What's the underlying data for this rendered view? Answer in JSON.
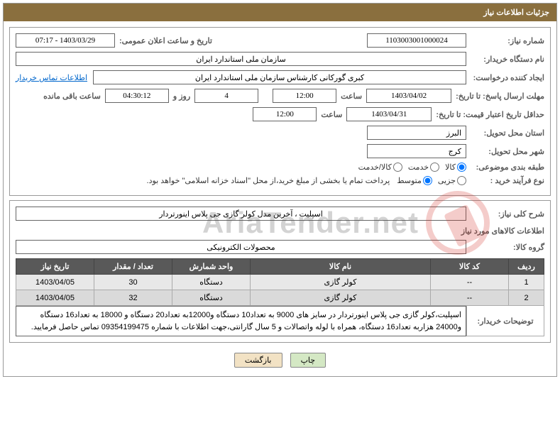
{
  "header_title": "جزئیات اطلاعات نیاز",
  "labels": {
    "need_no": "شماره نیاز:",
    "announce_dt": "تاریخ و ساعت اعلان عمومی:",
    "buyer_org": "نام دستگاه خریدار:",
    "requester": "ایجاد کننده درخواست:",
    "contact_link": "اطلاعات تماس خریدار",
    "reply_deadline": "مهلت ارسال پاسخ: تا تاریخ:",
    "hour": "ساعت",
    "days_and": "روز و",
    "remaining": "ساعت باقی مانده",
    "price_validity": "حداقل تاریخ اعتبار قیمت: تا تاریخ:",
    "delivery_province": "استان محل تحویل:",
    "delivery_city": "شهر محل تحویل:",
    "category": "طبقه بندی موضوعی:",
    "purchase_type": "نوع فرآیند خرید :",
    "purchase_note": "پرداخت تمام یا بخشی از مبلغ خرید،از محل \"اسناد خزانه اسلامی\" خواهد بود.",
    "need_summary": "شرح کلی نیاز:",
    "goods_info": "اطلاعات کالاهای مورد نیاز",
    "goods_group": "گروه کالا:",
    "buyer_notes": "توضیحات خریدار:"
  },
  "values": {
    "need_no": "1103003001000024",
    "announce_dt": "1403/03/29 - 07:17",
    "buyer_org": "سازمان ملی استاندارد ایران",
    "requester": "کبری گورکانی کارشناس سازمان ملی استاندارد ایران",
    "reply_date": "1403/04/02",
    "reply_hour": "12:00",
    "days_left": "4",
    "time_left": "04:30:12",
    "price_date": "1403/04/31",
    "price_hour": "12:00",
    "province": "البرز",
    "city": "کرج",
    "need_summary": "اسپلیت ، آخرین مدل کولر گازی جی پلاس اینورتردار",
    "goods_group": "محصولات الکترونیکی",
    "buyer_notes": "اسپلیت،کولر گازی جی پلاس اینورتردار در سایز های 9000 به تعداد10 دستگاه و12000به تعداد20 دستگاه و 18000 به تعداد16 دستگاه و24000 هزاربه تعداد16 دستگاه، همراه با لوله واتصالات و 5 سال گارانتی،جهت اطلاعات با شماره 09354199475 تماس حاصل فرمایید."
  },
  "radios": {
    "category": {
      "goods": "کالا",
      "service": "خدمت",
      "both": "کالا/خدمت",
      "selected": "goods"
    },
    "purchase": {
      "partial": "جزیی",
      "medium": "متوسط",
      "selected": "medium"
    }
  },
  "table": {
    "headers": {
      "row": "ردیف",
      "code": "کد کالا",
      "name": "نام کالا",
      "unit": "واحد شمارش",
      "qty": "تعداد / مقدار",
      "date": "تاریخ نیاز"
    },
    "rows": [
      {
        "row": "1",
        "code": "--",
        "name": "کولر گازی",
        "unit": "دستگاه",
        "qty": "30",
        "date": "1403/04/05"
      },
      {
        "row": "2",
        "code": "--",
        "name": "کولر گازی",
        "unit": "دستگاه",
        "qty": "32",
        "date": "1403/04/05"
      }
    ]
  },
  "buttons": {
    "print": "چاپ",
    "back": "بازگشت"
  },
  "watermark": "AriaTender.net"
}
